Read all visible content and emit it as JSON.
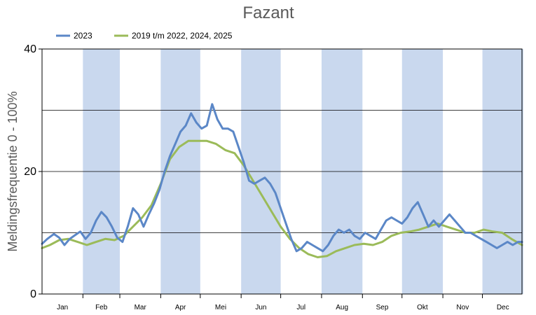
{
  "chart_data": {
    "type": "line",
    "title": "Fazant",
    "ylabel": "Meldingsfrequentie 0 - 100%",
    "xlabel": "",
    "ylim": [
      0,
      40
    ],
    "yticks": [
      "0",
      "20",
      "40"
    ],
    "gridlines_y": [
      10,
      20,
      30
    ],
    "months": [
      "Jan",
      "Feb",
      "Mar",
      "Apr",
      "Mei",
      "Jun",
      "Jul",
      "Aug",
      "Sep",
      "Okt",
      "Nov",
      "Dec"
    ],
    "shaded_months": [
      "Feb",
      "Apr",
      "Jun",
      "Aug",
      "Okt",
      "Dec"
    ],
    "shade_color": "#c9d8ee",
    "legend_position": "top-left",
    "x_unit": "day of year",
    "series": [
      {
        "name": "2023",
        "color": "#5b87c7",
        "points": [
          [
            1,
            8.2
          ],
          [
            5,
            9.0
          ],
          [
            10,
            9.8
          ],
          [
            14,
            9.2
          ],
          [
            18,
            8.0
          ],
          [
            22,
            9.0
          ],
          [
            26,
            9.6
          ],
          [
            30,
            10.2
          ],
          [
            34,
            9.0
          ],
          [
            38,
            10.0
          ],
          [
            42,
            12.0
          ],
          [
            46,
            13.4
          ],
          [
            50,
            12.5
          ],
          [
            54,
            11.0
          ],
          [
            58,
            9.2
          ],
          [
            62,
            8.5
          ],
          [
            66,
            11.0
          ],
          [
            70,
            14.0
          ],
          [
            74,
            13.0
          ],
          [
            78,
            11.0
          ],
          [
            82,
            13.0
          ],
          [
            86,
            14.8
          ],
          [
            90,
            17.0
          ],
          [
            94,
            20.0
          ],
          [
            98,
            22.5
          ],
          [
            102,
            24.5
          ],
          [
            106,
            26.5
          ],
          [
            110,
            27.5
          ],
          [
            114,
            29.5
          ],
          [
            118,
            28.0
          ],
          [
            122,
            27.0
          ],
          [
            126,
            27.5
          ],
          [
            130,
            31.0
          ],
          [
            134,
            28.5
          ],
          [
            138,
            27.0
          ],
          [
            142,
            27.0
          ],
          [
            146,
            26.5
          ],
          [
            150,
            24.0
          ],
          [
            154,
            21.5
          ],
          [
            158,
            18.5
          ],
          [
            162,
            18.0
          ],
          [
            166,
            18.5
          ],
          [
            170,
            19.0
          ],
          [
            174,
            18.0
          ],
          [
            178,
            16.5
          ],
          [
            182,
            14.0
          ],
          [
            186,
            11.5
          ],
          [
            190,
            9.0
          ],
          [
            194,
            7.0
          ],
          [
            198,
            7.5
          ],
          [
            202,
            8.5
          ],
          [
            206,
            8.0
          ],
          [
            210,
            7.5
          ],
          [
            214,
            7.0
          ],
          [
            218,
            8.0
          ],
          [
            222,
            9.5
          ],
          [
            226,
            10.5
          ],
          [
            230,
            10.0
          ],
          [
            234,
            10.5
          ],
          [
            238,
            9.5
          ],
          [
            242,
            9.0
          ],
          [
            246,
            10.0
          ],
          [
            250,
            9.5
          ],
          [
            254,
            9.0
          ],
          [
            258,
            10.5
          ],
          [
            262,
            12.0
          ],
          [
            266,
            12.5
          ],
          [
            270,
            12.0
          ],
          [
            274,
            11.5
          ],
          [
            278,
            12.5
          ],
          [
            282,
            14.0
          ],
          [
            286,
            15.0
          ],
          [
            290,
            13.0
          ],
          [
            294,
            11.0
          ],
          [
            298,
            12.0
          ],
          [
            302,
            11.0
          ],
          [
            306,
            12.0
          ],
          [
            310,
            13.0
          ],
          [
            314,
            12.0
          ],
          [
            318,
            11.0
          ],
          [
            322,
            10.0
          ],
          [
            326,
            10.0
          ],
          [
            330,
            9.5
          ],
          [
            334,
            9.0
          ],
          [
            338,
            8.5
          ],
          [
            342,
            8.0
          ],
          [
            346,
            7.5
          ],
          [
            350,
            8.0
          ],
          [
            354,
            8.5
          ],
          [
            358,
            8.0
          ],
          [
            362,
            8.5
          ],
          [
            365,
            8.5
          ]
        ]
      },
      {
        "name": "2019 t/m 2022, 2024, 2025",
        "color": "#9bbb59",
        "points": [
          [
            1,
            7.5
          ],
          [
            7,
            8.0
          ],
          [
            14,
            8.8
          ],
          [
            21,
            9.0
          ],
          [
            28,
            8.5
          ],
          [
            35,
            8.0
          ],
          [
            42,
            8.5
          ],
          [
            49,
            9.0
          ],
          [
            56,
            8.8
          ],
          [
            63,
            9.5
          ],
          [
            70,
            11.0
          ],
          [
            77,
            12.5
          ],
          [
            84,
            14.5
          ],
          [
            91,
            18.0
          ],
          [
            98,
            22.0
          ],
          [
            105,
            24.0
          ],
          [
            112,
            25.0
          ],
          [
            119,
            25.0
          ],
          [
            126,
            25.0
          ],
          [
            133,
            24.5
          ],
          [
            140,
            23.5
          ],
          [
            147,
            23.0
          ],
          [
            154,
            21.0
          ],
          [
            161,
            18.5
          ],
          [
            168,
            16.0
          ],
          [
            175,
            13.5
          ],
          [
            182,
            11.0
          ],
          [
            189,
            9.0
          ],
          [
            196,
            7.5
          ],
          [
            203,
            6.5
          ],
          [
            210,
            6.0
          ],
          [
            217,
            6.2
          ],
          [
            224,
            7.0
          ],
          [
            231,
            7.5
          ],
          [
            238,
            8.0
          ],
          [
            245,
            8.2
          ],
          [
            252,
            8.0
          ],
          [
            259,
            8.5
          ],
          [
            266,
            9.5
          ],
          [
            273,
            10.0
          ],
          [
            280,
            10.2
          ],
          [
            287,
            10.5
          ],
          [
            294,
            11.0
          ],
          [
            301,
            11.5
          ],
          [
            308,
            11.0
          ],
          [
            315,
            10.5
          ],
          [
            322,
            10.0
          ],
          [
            329,
            10.0
          ],
          [
            336,
            10.5
          ],
          [
            343,
            10.2
          ],
          [
            350,
            10.0
          ],
          [
            357,
            9.0
          ],
          [
            365,
            8.0
          ]
        ]
      }
    ]
  }
}
